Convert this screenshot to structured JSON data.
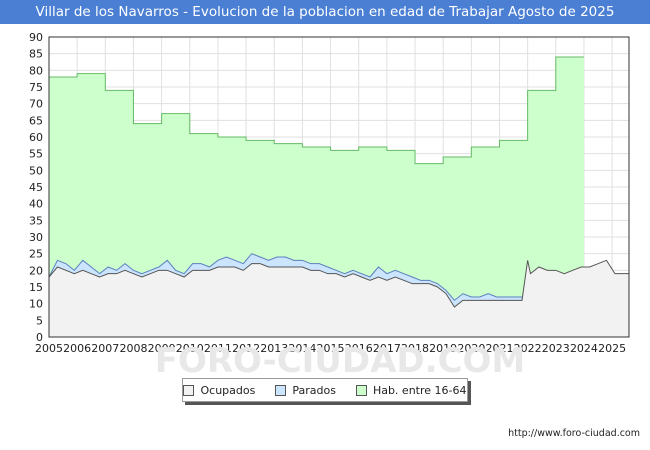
{
  "chart_data": {
    "type": "area",
    "title": "Villar de los Navarros - Evolucion de la poblacion en edad de Trabajar Agosto de 2025",
    "xlabel": "",
    "ylabel": "",
    "ylim": [
      0,
      90
    ],
    "yticks": [
      0,
      5,
      10,
      15,
      20,
      25,
      30,
      35,
      40,
      45,
      50,
      55,
      60,
      65,
      70,
      75,
      80,
      85,
      90
    ],
    "xlim": [
      2005,
      2025.6
    ],
    "xticks": [
      "2005",
      "2006",
      "2007",
      "2008",
      "2009",
      "2010",
      "2011",
      "2012",
      "2013",
      "2014",
      "2015",
      "2016",
      "2017",
      "2018",
      "2019",
      "2020",
      "2021",
      "2022",
      "2023",
      "2024",
      "2025"
    ],
    "grid": true,
    "legend_position": "bottom",
    "series": [
      {
        "name": "Hab. entre 16-64",
        "color": "#ccffcc",
        "line_color": "#66bb66",
        "step": true,
        "x": [
          2005,
          2006,
          2007,
          2008,
          2009,
          2010,
          2011,
          2012,
          2013,
          2014,
          2015,
          2016,
          2017,
          2018,
          2019,
          2020,
          2021,
          2022,
          2023,
          2024
        ],
        "values": [
          78,
          79,
          74,
          64,
          67,
          61,
          60,
          59,
          58,
          57,
          56,
          57,
          56,
          52,
          54,
          57,
          59,
          74,
          84,
          84
        ]
      },
      {
        "name": "Parados",
        "color": "#cce5ff",
        "line_color": "#5b7fbf",
        "x": [
          2005.0,
          2005.3,
          2005.6,
          2005.9,
          2006.2,
          2006.5,
          2006.8,
          2007.1,
          2007.4,
          2007.7,
          2008.0,
          2008.3,
          2008.6,
          2008.9,
          2009.2,
          2009.5,
          2009.8,
          2010.1,
          2010.4,
          2010.7,
          2011.0,
          2011.3,
          2011.6,
          2011.9,
          2012.2,
          2012.5,
          2012.8,
          2013.1,
          2013.4,
          2013.7,
          2014.0,
          2014.3,
          2014.6,
          2014.9,
          2015.2,
          2015.5,
          2015.8,
          2016.1,
          2016.4,
          2016.7,
          2017.0,
          2017.3,
          2017.6,
          2017.9,
          2018.2,
          2018.5,
          2018.8,
          2019.1,
          2019.4,
          2019.7,
          2020.0,
          2020.3,
          2020.6,
          2020.9,
          2021.2,
          2021.5,
          2021.8,
          2022.0
        ],
        "values": [
          18,
          23,
          22,
          20,
          23,
          21,
          19,
          21,
          20,
          22,
          20,
          19,
          20,
          21,
          23,
          20,
          19,
          22,
          22,
          21,
          23,
          24,
          23,
          22,
          25,
          24,
          23,
          24,
          24,
          23,
          23,
          22,
          22,
          21,
          20,
          19,
          20,
          19,
          18,
          21,
          19,
          20,
          19,
          18,
          17,
          17,
          16,
          14,
          11,
          13,
          12,
          12,
          13,
          12,
          12,
          12,
          12,
          12
        ]
      },
      {
        "name": "Ocupados",
        "color": "#f2f2f2",
        "line_color": "#555555",
        "x": [
          2005.0,
          2005.3,
          2005.6,
          2005.9,
          2006.2,
          2006.5,
          2006.8,
          2007.1,
          2007.4,
          2007.7,
          2008.0,
          2008.3,
          2008.6,
          2008.9,
          2009.2,
          2009.5,
          2009.8,
          2010.1,
          2010.4,
          2010.7,
          2011.0,
          2011.3,
          2011.6,
          2011.9,
          2012.2,
          2012.5,
          2012.8,
          2013.1,
          2013.4,
          2013.7,
          2014.0,
          2014.3,
          2014.6,
          2014.9,
          2015.2,
          2015.5,
          2015.8,
          2016.1,
          2016.4,
          2016.7,
          2017.0,
          2017.3,
          2017.6,
          2017.9,
          2018.2,
          2018.5,
          2018.8,
          2019.1,
          2019.4,
          2019.7,
          2020.0,
          2020.3,
          2020.6,
          2020.9,
          2021.2,
          2021.5,
          2021.8,
          2022.0,
          2022.1,
          2022.4,
          2022.7,
          2023.0,
          2023.3,
          2023.6,
          2023.9,
          2024.2,
          2024.5,
          2024.8,
          2025.1,
          2025.4,
          2025.6
        ],
        "values": [
          18,
          21,
          20,
          19,
          20,
          19,
          18,
          19,
          19,
          20,
          19,
          18,
          19,
          20,
          20,
          19,
          18,
          20,
          20,
          20,
          21,
          21,
          21,
          20,
          22,
          22,
          21,
          21,
          21,
          21,
          21,
          20,
          20,
          19,
          19,
          18,
          19,
          18,
          17,
          18,
          17,
          18,
          17,
          16,
          16,
          16,
          15,
          13,
          9,
          11,
          11,
          11,
          11,
          11,
          11,
          11,
          11,
          23,
          19,
          21,
          20,
          20,
          19,
          20,
          21,
          21,
          22,
          23,
          19,
          19,
          19
        ]
      }
    ]
  },
  "legend": {
    "items": [
      {
        "label": "Ocupados",
        "color": "#f2f2f2"
      },
      {
        "label": "Parados",
        "color": "#cce5ff"
      },
      {
        "label": "Hab. entre 16-64",
        "color": "#ccffcc"
      }
    ]
  },
  "source": "http://www.foro-ciudad.com",
  "watermark": "FORO-CIUDAD.COM"
}
